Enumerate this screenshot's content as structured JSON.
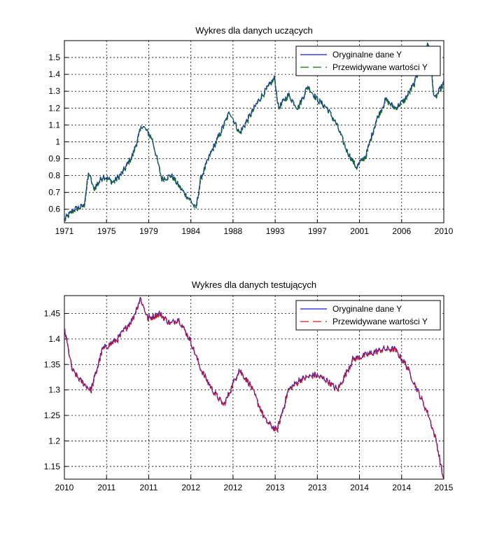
{
  "chart_data": [
    {
      "type": "line",
      "title": "Wykres dla danych uczących",
      "xlabel": "",
      "ylabel": "",
      "xlim": [
        1971,
        2010
      ],
      "ylim": [
        0.52,
        1.6
      ],
      "x_ticks": [
        "1971",
        "1975",
        "1979",
        "1984",
        "1988",
        "1993",
        "1997",
        "2001",
        "2006",
        "2010"
      ],
      "y_ticks": [
        "0.6",
        "0.7",
        "0.8",
        "0.9",
        "1",
        "1.1",
        "1.2",
        "1.3",
        "1.4",
        "1.5"
      ],
      "grid": true,
      "legend_position": "top-right",
      "series": [
        {
          "name": "Oryginalne dane Y",
          "color": "#1a1ad8",
          "style": "solid"
        },
        {
          "name": "Przewidywane wartości Y",
          "color": "#0c7c0c",
          "style": "dashed"
        }
      ],
      "x": [
        1971,
        1972,
        1973,
        1973.5,
        1974,
        1975,
        1976,
        1977,
        1978,
        1978.7,
        1979,
        1980,
        1981,
        1982,
        1983,
        1984,
        1984.5,
        1985,
        1986,
        1987,
        1988,
        1989,
        1990,
        1991,
        1992,
        1992.6,
        1993,
        1994,
        1995,
        1996,
        1997,
        1998,
        1999,
        2000,
        2001,
        2002,
        2003,
        2004,
        2005,
        2006,
        2007,
        2008,
        2008.5,
        2009,
        2010
      ],
      "y": [
        0.54,
        0.6,
        0.62,
        0.82,
        0.72,
        0.8,
        0.76,
        0.82,
        0.92,
        1.05,
        1.1,
        1.02,
        0.78,
        0.8,
        0.72,
        0.65,
        0.6,
        0.78,
        0.93,
        1.05,
        1.18,
        1.05,
        1.15,
        1.25,
        1.33,
        1.38,
        1.2,
        1.28,
        1.2,
        1.33,
        1.25,
        1.2,
        1.1,
        0.95,
        0.85,
        0.92,
        1.12,
        1.25,
        1.2,
        1.25,
        1.35,
        1.55,
        1.58,
        1.25,
        1.35
      ]
    },
    {
      "type": "line",
      "title": "Wykres dla danych testujących",
      "xlabel": "",
      "ylabel": "",
      "xlim": [
        2010,
        2015
      ],
      "ylim": [
        1.125,
        1.485
      ],
      "x_ticks": [
        "2010",
        "2011",
        "2011",
        "2012",
        "2012",
        "2013",
        "2013",
        "2014",
        "2014",
        "2015"
      ],
      "y_ticks": [
        "1.15",
        "1.2",
        "1.25",
        "1.3",
        "1.35",
        "1.4",
        "1.45"
      ],
      "grid": true,
      "legend_position": "top-right",
      "series": [
        {
          "name": "Oryginalne dane Y",
          "color": "#1a1ad8",
          "style": "solid"
        },
        {
          "name": "Przewidywane wartości Y",
          "color": "#e01818",
          "style": "dashed"
        }
      ],
      "x": [
        2010,
        2010.1,
        2010.2,
        2010.35,
        2010.5,
        2010.7,
        2010.9,
        2011,
        2011.1,
        2011.25,
        2011.4,
        2011.5,
        2011.65,
        2011.8,
        2011.95,
        2012.1,
        2012.3,
        2012.45,
        2012.65,
        2012.8,
        2012.95,
        2013.1,
        2013.3,
        2013.45,
        2013.6,
        2013.8,
        2014,
        2014.2,
        2014.35,
        2014.5,
        2014.65,
        2014.8,
        2014.9,
        2015
      ],
      "y": [
        1.42,
        1.34,
        1.32,
        1.3,
        1.38,
        1.4,
        1.44,
        1.48,
        1.44,
        1.45,
        1.43,
        1.44,
        1.4,
        1.34,
        1.3,
        1.27,
        1.34,
        1.31,
        1.24,
        1.22,
        1.3,
        1.32,
        1.33,
        1.32,
        1.3,
        1.36,
        1.37,
        1.38,
        1.38,
        1.35,
        1.3,
        1.25,
        1.2,
        1.12
      ]
    }
  ]
}
